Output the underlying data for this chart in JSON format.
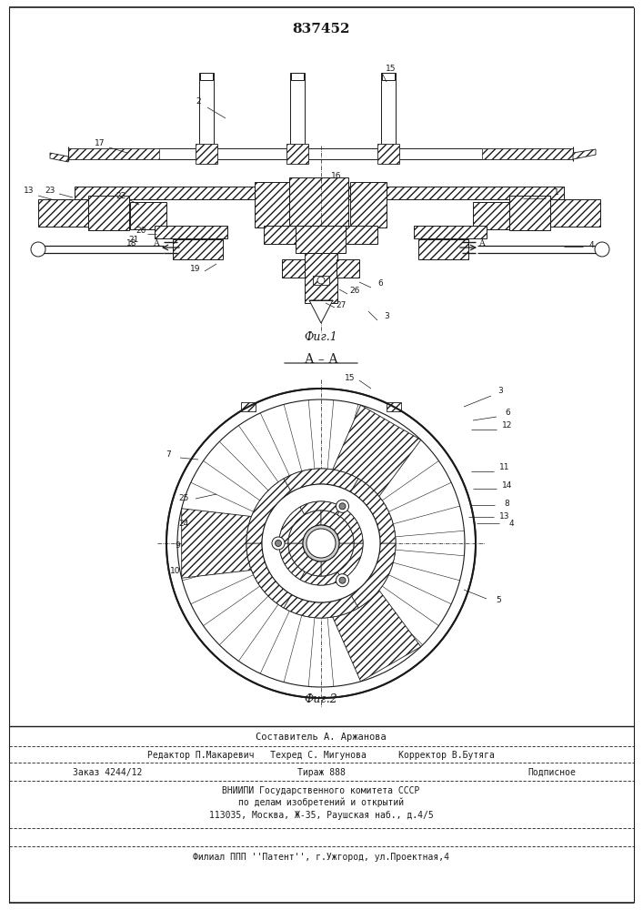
{
  "patent_number": "837452",
  "fig1_caption": "Фиг.1",
  "fig2_caption": "Фиг.2",
  "section_label": "А – А",
  "footer_line1": "Составитель А. Аржанова",
  "footer_line2": "Редактор П.Макаревич   Техред С. Мигунова      Корректор В.Бутяга",
  "footer_line3a": "Заказ 4244/12",
  "footer_line3b": "Тираж 888",
  "footer_line3c": "Подписное",
  "footer_line4": "ВНИИПИ Государственного комитета СССР",
  "footer_line5": "по делам изобретений и открытий",
  "footer_line6": "113035, Москва, Ж-35, Раушская наб., д.4/5",
  "footer_line7": "Филиал ППП ''Патент'', г.Ужгород, ул.Проектная,4",
  "bg_color": "#ffffff",
  "line_color": "#1a1a1a"
}
